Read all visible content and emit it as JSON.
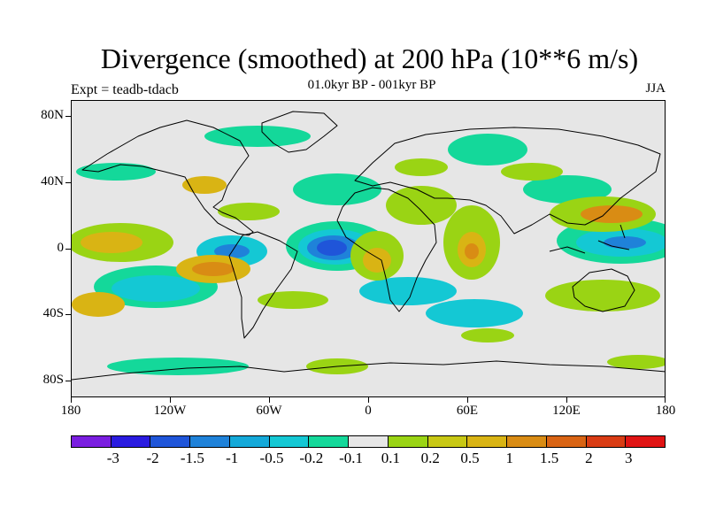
{
  "title": "Divergence (smoothed) at 200 hPa (10**6 m/s)",
  "experiment": "Expt = teadb-tdacb",
  "period": "01.0kyr BP - 001kyr BP",
  "season": "JJA",
  "map": {
    "background_color": "#e6e6e6",
    "coastline_color": "#000000",
    "lon_ticks": [
      "180",
      "120W",
      "60W",
      "0",
      "60E",
      "120E",
      "180"
    ],
    "lat_ticks": [
      "80N",
      "40N",
      "0",
      "40S",
      "80S"
    ]
  },
  "colorbar": {
    "colors": [
      "#7a1ee0",
      "#2a1be0",
      "#1f55d9",
      "#1f82d9",
      "#14a9d9",
      "#14c8d4",
      "#14d89a",
      "#e6e6e6",
      "#9ad414",
      "#c8c814",
      "#d9b414",
      "#d98c14",
      "#d96414",
      "#d93c14",
      "#e01414"
    ],
    "labels": [
      "-3",
      "-2",
      "-1.5",
      "-1",
      "-0.5",
      "-0.2",
      "-0.1",
      "0.1",
      "0.2",
      "0.5",
      "1",
      "1.5",
      "2",
      "3"
    ]
  }
}
